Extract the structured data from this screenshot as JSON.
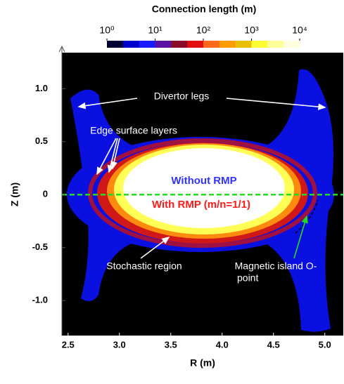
{
  "chart_data": {
    "type": "heatmap",
    "colorbar": {
      "title": "Connection length (m)",
      "log_scale": true,
      "clim": [
        1,
        10000
      ],
      "ticks": [
        {
          "value": 1,
          "label": "10⁰"
        },
        {
          "value": 10,
          "label": "10¹"
        },
        {
          "value": 100,
          "label": "10²"
        },
        {
          "value": 1000,
          "label": "10³"
        },
        {
          "value": 10000,
          "label": "10⁴"
        }
      ],
      "colormap": [
        "#000033",
        "#0000cc",
        "#1a1aff",
        "#5a10a0",
        "#8a0a2a",
        "#e01010",
        "#ff6a1a",
        "#ff9a00",
        "#e8c000",
        "#ffff33",
        "#ffff99",
        "#ffffe0"
      ]
    },
    "x_label": "R (m)",
    "y_label": "Z (m)",
    "xlim": [
      2.44,
      5.18
    ],
    "ylim": [
      -1.33,
      1.34
    ],
    "xticks": [
      2.5,
      {
        "value": 3,
        "label": "3.0"
      },
      3.5,
      {
        "value": 4,
        "label": "4.0"
      },
      4.5,
      {
        "value": 5,
        "label": "5.0"
      }
    ],
    "yticks": [
      {
        "value": 1,
        "label": "1.0"
      },
      0.5,
      0,
      -0.5,
      {
        "value": -1,
        "label": "-1.0"
      }
    ],
    "reference_line": {
      "y": 0,
      "color": "#22dd22"
    },
    "annotations": [
      "Divertor legs",
      "Edge surface layers",
      "Without RMP",
      "With RMP (m/n=1/1)",
      "Stochastic region",
      [
        "Magnetic island O-",
        "point"
      ]
    ]
  }
}
